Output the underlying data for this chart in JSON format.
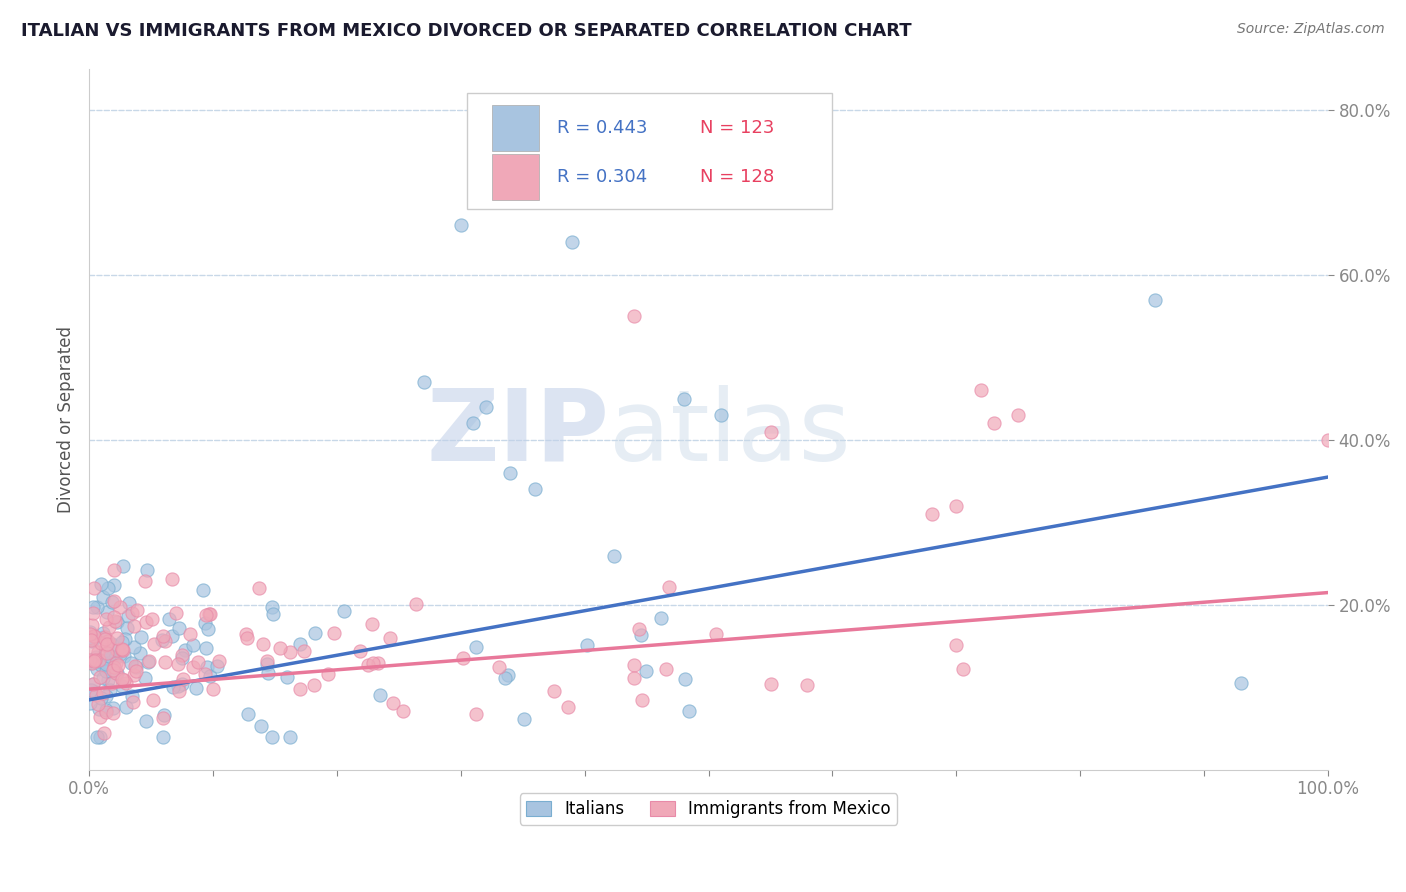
{
  "title": "ITALIAN VS IMMIGRANTS FROM MEXICO DIVORCED OR SEPARATED CORRELATION CHART",
  "source_text": "Source: ZipAtlas.com",
  "ylabel": "Divorced or Separated",
  "watermark_zip": "ZIP",
  "watermark_atlas": "atlas",
  "xlim": [
    0.0,
    1.0
  ],
  "ylim": [
    0.0,
    0.85
  ],
  "y_tick_pos": [
    0.2,
    0.4,
    0.6,
    0.8
  ],
  "y_tick_labels": [
    "20.0%",
    "40.0%",
    "60.0%",
    "80.0%"
  ],
  "x_tick_pos": [
    0.0,
    0.1,
    0.2,
    0.3,
    0.4,
    0.5,
    0.6,
    0.7,
    0.8,
    0.9,
    1.0
  ],
  "x_tick_labels": [
    "0.0%",
    "",
    "",
    "",
    "",
    "",
    "",
    "",
    "",
    "",
    "100.0%"
  ],
  "italian_color": "#a8c4e0",
  "mexican_color": "#f0a8b8",
  "italian_edge_color": "#7aaed0",
  "mexican_edge_color": "#e88aa8",
  "italian_R": 0.443,
  "italian_N": 123,
  "mexican_R": 0.304,
  "mexican_N": 128,
  "italian_line_color": "#4472C4",
  "mexican_line_color": "#E8789A",
  "grid_color": "#c8d8e8",
  "background_color": "#ffffff",
  "title_color": "#1a1a2e",
  "legend_R_color": "#4472C4",
  "legend_N_color": "#E84060",
  "tick_color": "#4472C4",
  "italian_line_start": 0.085,
  "italian_line_end": 0.355,
  "mexican_line_start": 0.098,
  "mexican_line_end": 0.215
}
